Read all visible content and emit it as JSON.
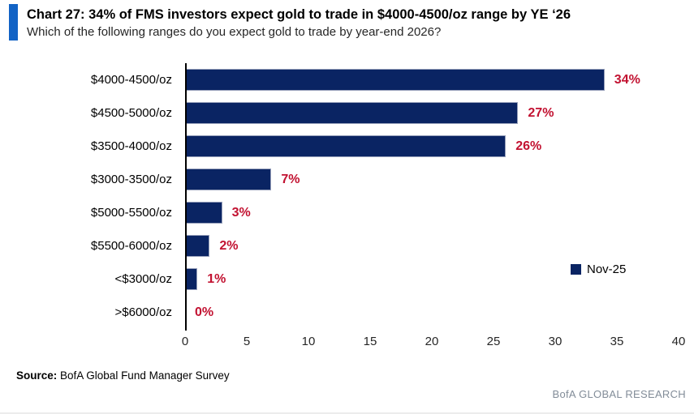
{
  "header": {
    "title": "Chart 27: 34% of FMS investors expect gold to trade in $4000-4500/oz range by YE ‘26",
    "subtitle": "Which of the following ranges do you expect gold to trade by year-end 2026?"
  },
  "chart_data": {
    "type": "bar",
    "orientation": "horizontal",
    "title": "Chart 27: 34% of FMS investors expect gold to trade in $4000-4500/oz range by YE ‘26",
    "subtitle": "Which of the following ranges do you expect gold to trade by year-end 2026?",
    "categories": [
      "$4000-4500/oz",
      "$4500-5000/oz",
      "$3500-4000/oz",
      "$3000-3500/oz",
      "$5000-5500/oz",
      "$5500-6000/oz",
      "<$3000/oz",
      ">$6000/oz"
    ],
    "values": [
      34,
      27,
      26,
      7,
      3,
      2,
      1,
      0
    ],
    "value_labels": [
      "34%",
      "27%",
      "26%",
      "7%",
      "3%",
      "2%",
      "1%",
      "0%"
    ],
    "series": [
      {
        "name": "Nov-25",
        "values": [
          34,
          27,
          26,
          7,
          3,
          2,
          1,
          0
        ]
      }
    ],
    "x_ticks": [
      "0",
      "5",
      "10",
      "15",
      "20",
      "25",
      "30",
      "35",
      "40"
    ],
    "xlim": [
      0,
      40
    ],
    "xlabel": "",
    "ylabel": "",
    "grid": false,
    "legend_position": "right-middle"
  },
  "legend": {
    "label": "Nov-25"
  },
  "footer": {
    "source_label": "Source:",
    "source_text": " BofA Global Fund Manager Survey",
    "brand": "BofA GLOBAL RESEARCH"
  },
  "colors": {
    "accent_bar": "#1263c5",
    "bar_fill": "#0a2463",
    "value_label": "#c21231",
    "axis_line": "#000000",
    "brand_text": "#828c98"
  }
}
